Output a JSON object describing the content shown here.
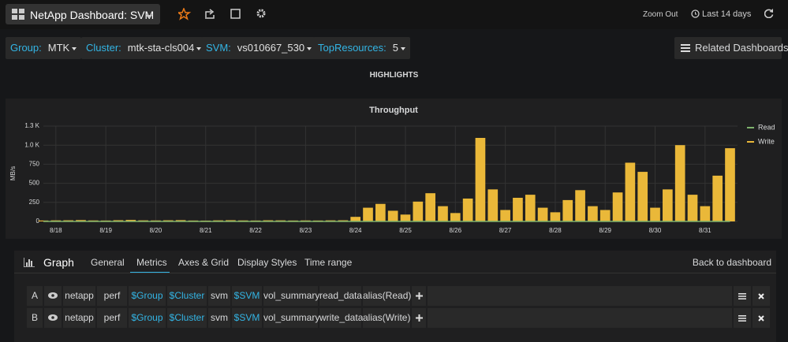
{
  "header": {
    "title": "NetApp Dashboard: SVM",
    "zoom_out": "Zoom Out",
    "time_range": "Last 14 days"
  },
  "variables": [
    {
      "label": "Group:",
      "value": "MTK"
    },
    {
      "label": "Cluster:",
      "value": "mtk-sta-cls004"
    },
    {
      "label": "SVM:",
      "value": "vs010667_530"
    },
    {
      "label": "TopResources:",
      "value": "5"
    }
  ],
  "related": "Related Dashboards",
  "row_title": "HIGHLIGHTS",
  "chart_data": {
    "type": "bar",
    "title": "Throughput",
    "y_label": "MB/s",
    "xlim": [
      17.75,
      31.65
    ],
    "xticks": [
      {
        "value": 18,
        "label": "8/18"
      },
      {
        "value": 19,
        "label": "8/19"
      },
      {
        "value": 20,
        "label": "8/20"
      },
      {
        "value": 21,
        "label": "8/21"
      },
      {
        "value": 22,
        "label": "8/22"
      },
      {
        "value": 23,
        "label": "8/23"
      },
      {
        "value": 24,
        "label": "8/24"
      },
      {
        "value": 25,
        "label": "8/25"
      },
      {
        "value": 26,
        "label": "8/26"
      },
      {
        "value": 27,
        "label": "8/27"
      },
      {
        "value": 28,
        "label": "8/28"
      },
      {
        "value": 29,
        "label": "8/29"
      },
      {
        "value": 30,
        "label": "8/30"
      },
      {
        "value": 31,
        "label": "8/31"
      }
    ],
    "ylim": [
      0,
      1250
    ],
    "yticks": [
      0,
      250,
      500,
      750,
      {
        "value": 1000,
        "label": "1.0 K"
      },
      {
        "value": 1250,
        "label": "1.3 K"
      }
    ],
    "grid": true,
    "legend": "right",
    "x": [
      17.75,
      18,
      18.25,
      18.5,
      18.75,
      19,
      19.25,
      19.5,
      19.75,
      20,
      20.25,
      20.5,
      20.75,
      21,
      21.25,
      21.5,
      21.75,
      22,
      22.25,
      22.5,
      22.75,
      23,
      23.25,
      23.5,
      23.75,
      24,
      24.25,
      24.5,
      24.75,
      25,
      25.25,
      25.5,
      25.75,
      26,
      26.25,
      26.5,
      26.75,
      27,
      27.25,
      27.5,
      27.75,
      28,
      28.25,
      28.5,
      28.75,
      29,
      29.25,
      29.5,
      29.75,
      30,
      30.25,
      30.5,
      30.75,
      31,
      31.25,
      31.5
    ],
    "series": [
      {
        "name": "Read",
        "color": "#7eb26d",
        "values": [
          0,
          0,
          0,
          0,
          0,
          0,
          0,
          0,
          0,
          0,
          0,
          0,
          0,
          0,
          0,
          0,
          0,
          0,
          0,
          0,
          0,
          0,
          0,
          0,
          0,
          0,
          0,
          0,
          0,
          0,
          0,
          0,
          0,
          0,
          0,
          0,
          0,
          0,
          0,
          0,
          0,
          0,
          0,
          0,
          0,
          0,
          0,
          0,
          0,
          0,
          0,
          0,
          0,
          0,
          0,
          0
        ]
      },
      {
        "name": "Write",
        "color": "#eab839",
        "values": [
          12,
          14,
          15,
          18,
          13,
          12,
          16,
          20,
          14,
          13,
          15,
          17,
          12,
          11,
          14,
          16,
          13,
          12,
          15,
          14,
          12,
          13,
          12,
          14,
          15,
          60,
          180,
          230,
          140,
          90,
          260,
          370,
          200,
          110,
          300,
          1095,
          420,
          150,
          310,
          350,
          180,
          120,
          280,
          410,
          200,
          150,
          380,
          770,
          650,
          180,
          420,
          1000,
          350,
          200,
          600,
          960
        ]
      }
    ]
  },
  "editor": {
    "title": "Graph",
    "tabs": [
      "General",
      "Metrics",
      "Axes & Grid",
      "Display Styles",
      "Time range"
    ],
    "back": "Back to dashboard",
    "queries": [
      {
        "ref": "A",
        "parts": [
          "netapp",
          "perf",
          "$Group",
          "$Cluster",
          "svm",
          "$SVM",
          "vol_summary",
          "read_data",
          "alias(Read)"
        ]
      },
      {
        "ref": "B",
        "parts": [
          "netapp",
          "perf",
          "$Group",
          "$Cluster",
          "svm",
          "$SVM",
          "vol_summary",
          "write_data",
          "alias(Write)"
        ]
      }
    ]
  }
}
